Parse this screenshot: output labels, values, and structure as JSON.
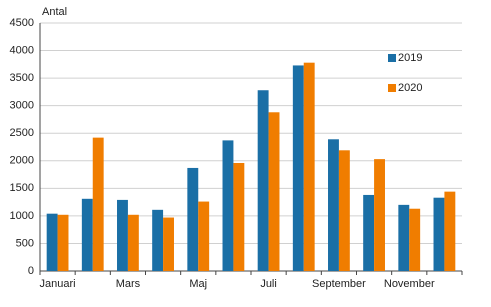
{
  "chart_data": {
    "type": "bar",
    "y_label": "Antal",
    "categories": [
      "Januari",
      null,
      "Mars",
      null,
      "Maj",
      null,
      "Juli",
      null,
      "September",
      null,
      "November",
      null
    ],
    "series": [
      {
        "name": "2019",
        "color": "#1a6fa6",
        "values": [
          1040,
          1310,
          1290,
          1110,
          1870,
          2370,
          3280,
          3730,
          2390,
          1380,
          1200,
          1330
        ]
      },
      {
        "name": "2020",
        "color": "#f07d00",
        "values": [
          1020,
          2420,
          1020,
          970,
          1260,
          1960,
          2880,
          3780,
          2190,
          2030,
          1130,
          1440
        ]
      }
    ],
    "ylim": [
      0,
      4500
    ],
    "yticks": [
      0,
      500,
      1000,
      1500,
      2000,
      2500,
      3000,
      3500,
      4000,
      4500
    ],
    "grid": true
  }
}
